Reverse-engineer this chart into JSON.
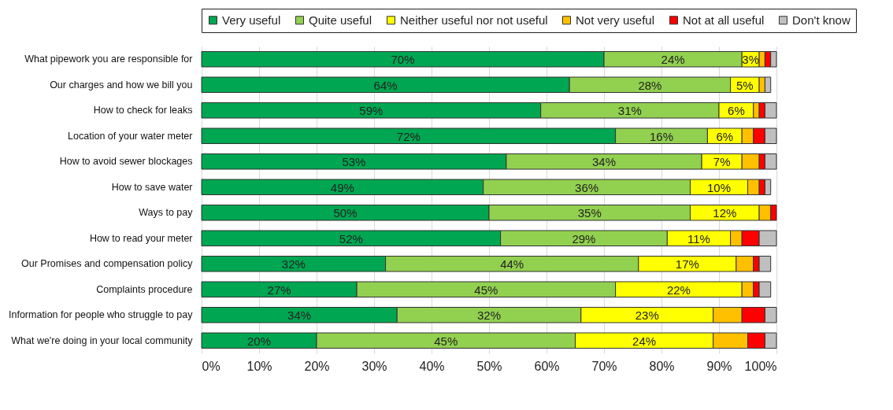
{
  "chart_data": {
    "type": "bar",
    "orientation": "horizontal",
    "stacked": true,
    "legend": "top",
    "grid": "x",
    "categories": [
      "What pipework you are responsible for",
      "Our charges and how we bill you",
      "How to check for leaks",
      "Location of your water meter",
      "How to avoid sewer blockages",
      "How to save water",
      "Ways to pay",
      "How to read your meter",
      "Our Promises and compensation policy",
      "Complaints procedure",
      "Information for people who struggle to pay",
      "What we're doing in your local community"
    ],
    "xlim": [
      0,
      100
    ],
    "xticks": [
      {
        "value": 0,
        "label": "0%"
      },
      {
        "value": 10,
        "label": "10%"
      },
      {
        "value": 20,
        "label": "20%"
      },
      {
        "value": 30,
        "label": "30%"
      },
      {
        "value": 40,
        "label": "40%"
      },
      {
        "value": 50,
        "label": "50%"
      },
      {
        "value": 60,
        "label": "60%"
      },
      {
        "value": 70,
        "label": "70%"
      },
      {
        "value": 80,
        "label": "80%"
      },
      {
        "value": 90,
        "label": "90%"
      },
      {
        "value": 100,
        "label": "100%"
      }
    ],
    "series": [
      {
        "name": "Very useful",
        "color": "#00a651",
        "values": [
          70,
          64,
          59,
          72,
          53,
          49,
          50,
          52,
          32,
          27,
          34,
          20
        ],
        "value_labels": [
          "70%",
          "64%",
          "59%",
          "72%",
          "53%",
          "49%",
          "50%",
          "52%",
          "32%",
          "27%",
          "34%",
          "20%"
        ]
      },
      {
        "name": "Quite useful",
        "color": "#92d050",
        "values": [
          24,
          28,
          31,
          16,
          34,
          36,
          35,
          29,
          44,
          45,
          32,
          45
        ],
        "value_labels": [
          "24%",
          "28%",
          "31%",
          "16%",
          "34%",
          "36%",
          "35%",
          "29%",
          "44%",
          "45%",
          "32%",
          "45%"
        ]
      },
      {
        "name": "Neither useful nor not useful",
        "color": "#ffff00",
        "values": [
          3,
          5,
          6,
          6,
          7,
          10,
          12,
          11,
          17,
          22,
          23,
          24
        ],
        "value_labels": [
          "3%",
          "5%",
          "6%",
          "6%",
          "7%",
          "10%",
          "12%",
          "11%",
          "17%",
          "22%",
          "23%",
          "24%"
        ]
      },
      {
        "name": "Not very useful",
        "color": "#ffc000",
        "values": [
          1,
          1,
          1,
          2,
          3,
          2,
          2,
          2,
          3,
          2,
          5,
          6
        ]
      },
      {
        "name": "Not at all useful",
        "color": "#ff0000",
        "values": [
          1,
          0,
          1,
          2,
          1,
          1,
          1,
          3,
          1,
          1,
          4,
          3
        ]
      },
      {
        "name": "Don't know",
        "color": "#bfbfbf",
        "values": [
          1,
          1,
          2,
          2,
          2,
          1,
          0,
          3,
          2,
          2,
          2,
          2
        ]
      }
    ]
  }
}
